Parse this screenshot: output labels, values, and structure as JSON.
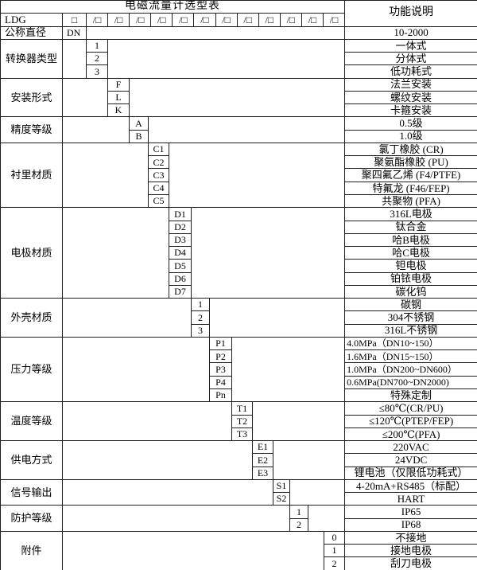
{
  "colors": {
    "border": "#1f1f1f",
    "text": "#000000",
    "background": "#ffffff"
  },
  "table": {
    "title": "电磁流量计选型表",
    "function_header": "功能说明",
    "model_row": {
      "prefix": "LDG",
      "base_box": "□",
      "slot_box": "/□",
      "slot_count": 12
    },
    "diameter_row": {
      "label": "公称直径",
      "code": "DN",
      "function": "10-2000"
    },
    "categories": [
      {
        "label": "转换器类型",
        "items": [
          {
            "code": "1",
            "func": "一体式"
          },
          {
            "code": "2",
            "func": "分体式"
          },
          {
            "code": "3",
            "func": "低功耗式"
          }
        ]
      },
      {
        "label": "安装形式",
        "items": [
          {
            "code": "F",
            "func": "法兰安装"
          },
          {
            "code": "L",
            "func": "螺纹安装"
          },
          {
            "code": "K",
            "func": "卡箍安装"
          }
        ]
      },
      {
        "label": "精度等级",
        "items": [
          {
            "code": "A",
            "func": "0.5级"
          },
          {
            "code": "B",
            "func": "1.0级"
          }
        ]
      },
      {
        "label": "衬里材质",
        "items": [
          {
            "code": "C1",
            "func": "氯丁橡胶 (CR)"
          },
          {
            "code": "C2",
            "func": "聚氨酯橡胶 (PU)"
          },
          {
            "code": "C3",
            "func": "聚四氟乙烯 (F4/PTFE)"
          },
          {
            "code": "C4",
            "func": "特氟龙 (F46/FEP)"
          },
          {
            "code": "C5",
            "func": "共聚物 (PFA)"
          }
        ]
      },
      {
        "label": "电极材质",
        "items": [
          {
            "code": "D1",
            "func": "316L电极"
          },
          {
            "code": "D2",
            "func": "钛合金"
          },
          {
            "code": "D3",
            "func": "哈B电极"
          },
          {
            "code": "D4",
            "func": "哈C电极"
          },
          {
            "code": "D5",
            "func": "钽电极"
          },
          {
            "code": "D6",
            "func": "铂铱电极"
          },
          {
            "code": "D7",
            "func": "碳化钨"
          }
        ]
      },
      {
        "label": "外壳材质",
        "items": [
          {
            "code": "1",
            "func": "碳钢"
          },
          {
            "code": "2",
            "func": "304不锈钢"
          },
          {
            "code": "3",
            "func": "316L不锈钢"
          }
        ]
      },
      {
        "label": "压力等级",
        "items": [
          {
            "code": "P1",
            "func": "4.0MPa（DN10~150）"
          },
          {
            "code": "P2",
            "func": "1.6MPa（DN15~150）"
          },
          {
            "code": "P3",
            "func": "1.0MPa（DN200~DN600）"
          },
          {
            "code": "P4",
            "func": "0.6MPa(DN700~DN2000)"
          },
          {
            "code": "Pn",
            "func": "特殊定制"
          }
        ]
      },
      {
        "label": "温度等级",
        "items": [
          {
            "code": "T1",
            "func": "≤80℃(CR/PU)"
          },
          {
            "code": "T2",
            "func": "≤120℃(PTEP/FEP)"
          },
          {
            "code": "T3",
            "func": "≤200℃(PFA)"
          }
        ]
      },
      {
        "label": "供电方式",
        "items": [
          {
            "code": "E1",
            "func": "220VAC"
          },
          {
            "code": "E2",
            "func": "24VDC"
          },
          {
            "code": "E3",
            "func": "锂电池（仅限低功耗式）"
          }
        ]
      },
      {
        "label": "信号输出",
        "items": [
          {
            "code": "S1",
            "func": "4-20mA+RS485（标配）"
          },
          {
            "code": "S2",
            "func": "HART"
          }
        ]
      },
      {
        "label": "防护等级",
        "items": [
          {
            "code": "1",
            "func": "IP65"
          },
          {
            "code": "2",
            "func": "IP68"
          }
        ]
      },
      {
        "label": "附件",
        "items": [
          {
            "code": "0",
            "func": "不接地"
          },
          {
            "code": "1",
            "func": "接地电极"
          },
          {
            "code": "2",
            "func": "刮刀电极"
          }
        ]
      }
    ]
  }
}
